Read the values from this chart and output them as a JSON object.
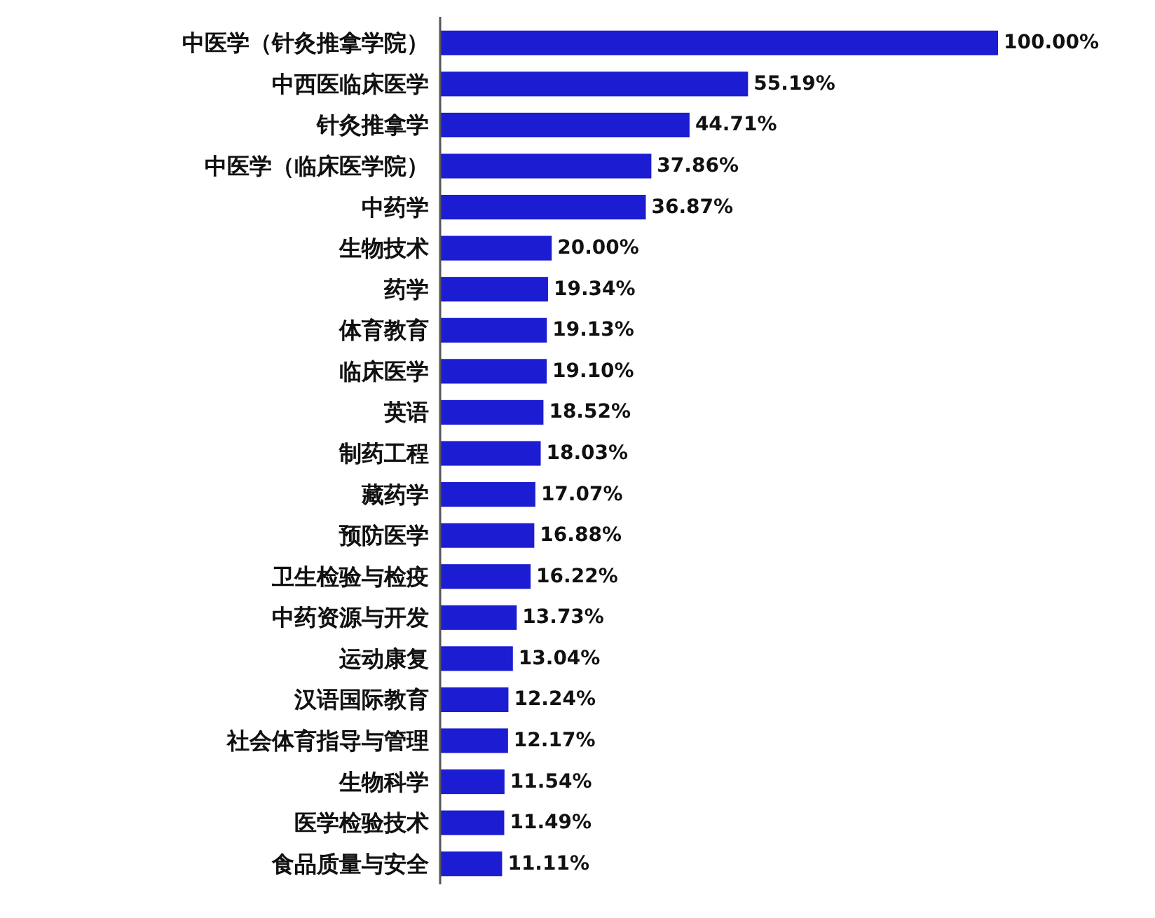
{
  "chart_data": {
    "type": "bar",
    "orientation": "horizontal",
    "categories": [
      "中医学（针灸推拿学院）",
      "中西医临床医学",
      "针灸推拿学",
      "中医学（临床医学院）",
      "中药学",
      "生物技术",
      "药学",
      "体育教育",
      "临床医学",
      "英语",
      "制药工程",
      "藏药学",
      "预防医学",
      "卫生检验与检疫",
      "中药资源与开发",
      "运动康复",
      "汉语国际教育",
      "社会体育指导与管理",
      "生物科学",
      "医学检验技术",
      "食品质量与安全"
    ],
    "values": [
      100.0,
      55.19,
      44.71,
      37.86,
      36.87,
      20.0,
      19.34,
      19.13,
      19.1,
      18.52,
      18.03,
      17.07,
      16.88,
      16.22,
      13.73,
      13.04,
      12.24,
      12.17,
      11.54,
      11.49,
      11.11
    ],
    "value_labels": [
      "100.00%",
      "55.19%",
      "44.71%",
      "37.86%",
      "36.87%",
      "20.00%",
      "19.34%",
      "19.13%",
      "19.10%",
      "18.52%",
      "18.03%",
      "17.07%",
      "16.88%",
      "16.22%",
      "13.73%",
      "13.04%",
      "12.24%",
      "12.17%",
      "11.54%",
      "11.49%",
      "11.11%"
    ],
    "color": "#1c1cd2"
  }
}
